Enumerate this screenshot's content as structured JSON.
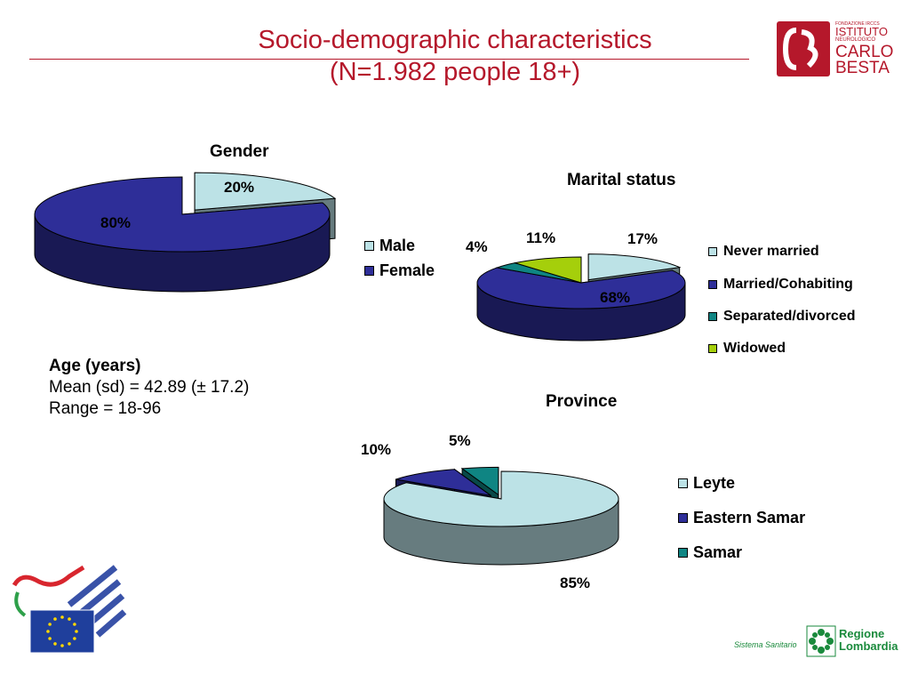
{
  "title": {
    "line1": "Socio-demographic characteristics",
    "line2": "(N=1.982 people 18+)"
  },
  "logos": {
    "besta": {
      "small_lines": [
        "FONDAZIONE IRCCS",
        "NEUROLOGICO"
      ],
      "word1": "ISTITUTO",
      "word2": "CARLO",
      "word3": "BESTA",
      "color": "#b5182b"
    },
    "regione": {
      "left_text": "Sistema Sanitario",
      "line1": "Regione",
      "line2": "Lombardia",
      "color": "#1a8a3c"
    },
    "eu_flag": {
      "color": "#1f3f9c",
      "star_color": "#ffd800"
    }
  },
  "age": {
    "heading": "Age (years)",
    "mean": "Mean (sd) = 42.89 (± 17.2)",
    "range": "Range = 18-96"
  },
  "colors": {
    "light_cyan": "#bce2e6",
    "navy": "#2e2e98",
    "teal": "#0f8583",
    "lime": "#a5cf0b"
  },
  "chart_data": [
    {
      "id": "gender",
      "type": "pie",
      "title": "Gender",
      "categories": [
        "Male",
        "Female"
      ],
      "values": [
        20,
        80
      ],
      "labels": [
        "20%",
        "80%"
      ],
      "colors": [
        "#bce2e6",
        "#2e2e98"
      ],
      "exploded": [
        "Male"
      ],
      "legend": "right"
    },
    {
      "id": "marital",
      "type": "pie",
      "title": "Marital status",
      "categories": [
        "Never married",
        "Married/Cohabiting",
        "Separated/divorced",
        "Widowed"
      ],
      "values": [
        17,
        68,
        4,
        11
      ],
      "labels": [
        "17%",
        "68%",
        "4%",
        "11%"
      ],
      "colors": [
        "#bce2e6",
        "#2e2e98",
        "#0f8583",
        "#a5cf0b"
      ],
      "exploded": [
        "Never married"
      ],
      "legend": "right"
    },
    {
      "id": "province",
      "type": "pie",
      "title": "Province",
      "categories": [
        "Leyte",
        "Eastern Samar",
        "Samar"
      ],
      "values": [
        85,
        10,
        5
      ],
      "labels": [
        "85%",
        "10%",
        "5%"
      ],
      "colors": [
        "#bce2e6",
        "#2e2e98",
        "#0f8583"
      ],
      "exploded": [
        "Eastern Samar",
        "Samar"
      ],
      "legend": "right"
    }
  ]
}
